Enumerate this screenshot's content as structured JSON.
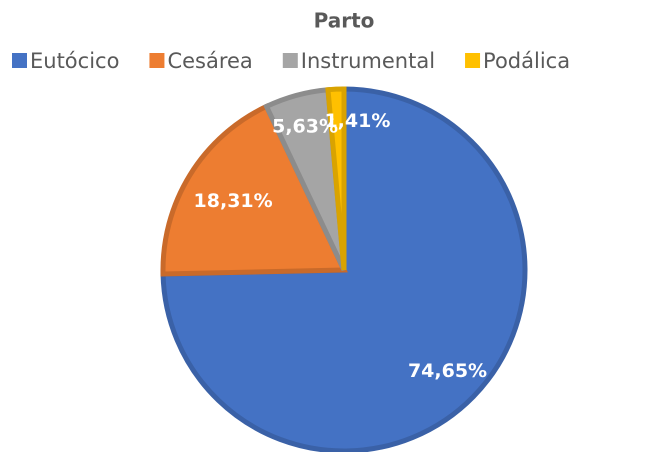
{
  "chart_data": {
    "type": "pie",
    "title": "Parto",
    "categories": [
      "Eutócico",
      "Cesárea",
      "Instrumental",
      "Podálica"
    ],
    "values": [
      74.65,
      18.31,
      5.63,
      1.41
    ],
    "value_labels": [
      "74,65%",
      "18,31%",
      "5,63%",
      "1,41%"
    ],
    "colors": [
      "#4472c4",
      "#ed7d31",
      "#a5a5a5",
      "#ffc000"
    ],
    "legend": "top"
  }
}
